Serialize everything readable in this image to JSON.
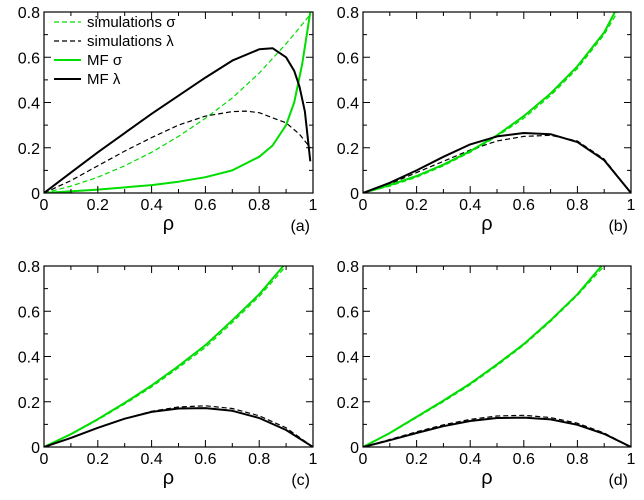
{
  "chart_data": [
    {
      "panel": "(a)",
      "type": "line",
      "xlabel": "ρ",
      "ylabel": "",
      "xlim": [
        0,
        1
      ],
      "ylim": [
        0,
        0.8
      ],
      "xticks": [
        "0",
        "0.2",
        "0.4",
        "0.6",
        "0.8",
        "1"
      ],
      "yticks": [
        "0",
        "0.2",
        "0.4",
        "0.6",
        "0.8"
      ],
      "grid": false,
      "legend": {
        "placement": "top-left",
        "entries": [
          {
            "label": "simulations σ",
            "color": "#00dd00",
            "dash": true
          },
          {
            "label": "simulations λ",
            "color": "#000000",
            "dash": true
          },
          {
            "label": "MF σ",
            "color": "#00dd00",
            "dash": false
          },
          {
            "label": "MF λ",
            "color": "#000000",
            "dash": false
          }
        ]
      },
      "series": [
        {
          "kind": "sim-sigma",
          "color": "#00dd00",
          "dash": true,
          "x": [
            0,
            0.1,
            0.2,
            0.3,
            0.4,
            0.5,
            0.6,
            0.7,
            0.8,
            0.9,
            0.95,
            0.99
          ],
          "y": [
            0,
            0.03,
            0.07,
            0.12,
            0.18,
            0.25,
            0.33,
            0.42,
            0.53,
            0.66,
            0.73,
            0.79
          ]
        },
        {
          "kind": "sim-lambda",
          "color": "#000000",
          "dash": true,
          "x": [
            0,
            0.1,
            0.2,
            0.3,
            0.4,
            0.5,
            0.6,
            0.7,
            0.75,
            0.8,
            0.9,
            0.95,
            0.99
          ],
          "y": [
            0,
            0.055,
            0.12,
            0.185,
            0.245,
            0.3,
            0.34,
            0.36,
            0.362,
            0.355,
            0.31,
            0.26,
            0.2
          ]
        },
        {
          "kind": "mf-sigma",
          "color": "#00dd00",
          "dash": false,
          "x": [
            0,
            0.2,
            0.4,
            0.5,
            0.6,
            0.7,
            0.8,
            0.85,
            0.9,
            0.93,
            0.96,
            0.99
          ],
          "y": [
            0,
            0.015,
            0.035,
            0.05,
            0.07,
            0.1,
            0.16,
            0.21,
            0.3,
            0.4,
            0.57,
            0.8
          ]
        },
        {
          "kind": "mf-lambda",
          "color": "#000000",
          "dash": false,
          "x": [
            0,
            0.1,
            0.2,
            0.3,
            0.4,
            0.5,
            0.6,
            0.7,
            0.8,
            0.85,
            0.9,
            0.93,
            0.95,
            0.97,
            0.99
          ],
          "y": [
            0,
            0.09,
            0.18,
            0.265,
            0.35,
            0.43,
            0.51,
            0.585,
            0.635,
            0.64,
            0.6,
            0.54,
            0.47,
            0.36,
            0.14
          ]
        }
      ]
    },
    {
      "panel": "(b)",
      "type": "line",
      "xlabel": "ρ",
      "ylabel": "",
      "xlim": [
        0,
        1
      ],
      "ylim": [
        0,
        0.8
      ],
      "xticks": [
        "0",
        "0.2",
        "0.4",
        "0.6",
        "0.8",
        "1"
      ],
      "yticks": [
        "0",
        "0.2",
        "0.4",
        "0.6",
        "0.8"
      ],
      "grid": false,
      "series": [
        {
          "kind": "sim-sigma",
          "color": "#00dd00",
          "dash": true,
          "x": [
            0,
            0.1,
            0.2,
            0.3,
            0.4,
            0.5,
            0.6,
            0.7,
            0.8,
            0.9,
            0.95
          ],
          "y": [
            0,
            0.03,
            0.07,
            0.12,
            0.18,
            0.25,
            0.33,
            0.43,
            0.55,
            0.7,
            0.8
          ]
        },
        {
          "kind": "sim-lambda",
          "color": "#000000",
          "dash": true,
          "x": [
            0,
            0.1,
            0.2,
            0.3,
            0.4,
            0.5,
            0.6,
            0.7,
            0.8,
            0.9,
            1
          ],
          "y": [
            0,
            0.04,
            0.09,
            0.14,
            0.19,
            0.23,
            0.25,
            0.255,
            0.23,
            0.15,
            0
          ]
        },
        {
          "kind": "mf-sigma",
          "color": "#00dd00",
          "dash": false,
          "x": [
            0,
            0.1,
            0.2,
            0.3,
            0.4,
            0.5,
            0.6,
            0.7,
            0.8,
            0.9,
            0.94
          ],
          "y": [
            0,
            0.035,
            0.075,
            0.125,
            0.185,
            0.255,
            0.34,
            0.44,
            0.56,
            0.71,
            0.8
          ]
        },
        {
          "kind": "mf-lambda",
          "color": "#000000",
          "dash": false,
          "x": [
            0,
            0.1,
            0.2,
            0.3,
            0.4,
            0.5,
            0.6,
            0.7,
            0.8,
            0.9,
            1
          ],
          "y": [
            0,
            0.045,
            0.1,
            0.16,
            0.215,
            0.25,
            0.265,
            0.26,
            0.225,
            0.145,
            0
          ]
        }
      ]
    },
    {
      "panel": "(c)",
      "type": "line",
      "xlabel": "ρ",
      "ylabel": "",
      "xlim": [
        0,
        1
      ],
      "ylim": [
        0,
        0.8
      ],
      "xticks": [
        "0",
        "0.2",
        "0.4",
        "0.6",
        "0.8",
        "1"
      ],
      "yticks": [
        "0",
        "0.2",
        "0.4",
        "0.6",
        "0.8"
      ],
      "grid": false,
      "series": [
        {
          "kind": "sim-sigma",
          "color": "#00dd00",
          "dash": true,
          "x": [
            0,
            0.1,
            0.2,
            0.3,
            0.4,
            0.5,
            0.6,
            0.7,
            0.8,
            0.9
          ],
          "y": [
            0,
            0.055,
            0.12,
            0.19,
            0.265,
            0.35,
            0.44,
            0.55,
            0.665,
            0.8
          ]
        },
        {
          "kind": "sim-lambda",
          "color": "#000000",
          "dash": true,
          "x": [
            0,
            0.1,
            0.2,
            0.3,
            0.4,
            0.5,
            0.6,
            0.7,
            0.8,
            0.9,
            1
          ],
          "y": [
            0,
            0.04,
            0.085,
            0.125,
            0.158,
            0.177,
            0.182,
            0.17,
            0.138,
            0.085,
            0
          ]
        },
        {
          "kind": "mf-sigma",
          "color": "#00dd00",
          "dash": false,
          "x": [
            0,
            0.1,
            0.2,
            0.3,
            0.4,
            0.5,
            0.6,
            0.7,
            0.8,
            0.89
          ],
          "y": [
            0,
            0.057,
            0.123,
            0.195,
            0.272,
            0.358,
            0.45,
            0.56,
            0.675,
            0.8
          ]
        },
        {
          "kind": "mf-lambda",
          "color": "#000000",
          "dash": false,
          "x": [
            0,
            0.1,
            0.2,
            0.3,
            0.4,
            0.5,
            0.6,
            0.7,
            0.8,
            0.9,
            1
          ],
          "y": [
            0,
            0.04,
            0.085,
            0.125,
            0.155,
            0.17,
            0.172,
            0.16,
            0.128,
            0.075,
            0
          ]
        }
      ]
    },
    {
      "panel": "(d)",
      "type": "line",
      "xlabel": "ρ",
      "ylabel": "",
      "xlim": [
        0,
        1
      ],
      "ylim": [
        0,
        0.8
      ],
      "xticks": [
        "0",
        "0.2",
        "0.4",
        "0.6",
        "0.8",
        "1"
      ],
      "yticks": [
        "0",
        "0.2",
        "0.4",
        "0.6",
        "0.8"
      ],
      "grid": false,
      "series": [
        {
          "kind": "sim-sigma",
          "color": "#00dd00",
          "dash": true,
          "x": [
            0,
            0.1,
            0.2,
            0.3,
            0.4,
            0.5,
            0.6,
            0.7,
            0.8,
            0.9
          ],
          "y": [
            0,
            0.06,
            0.13,
            0.2,
            0.275,
            0.36,
            0.45,
            0.555,
            0.67,
            0.8
          ]
        },
        {
          "kind": "sim-lambda",
          "color": "#000000",
          "dash": true,
          "x": [
            0,
            0.1,
            0.2,
            0.3,
            0.4,
            0.5,
            0.6,
            0.7,
            0.8,
            0.9,
            1
          ],
          "y": [
            0,
            0.033,
            0.067,
            0.098,
            0.122,
            0.137,
            0.14,
            0.13,
            0.105,
            0.062,
            0
          ]
        },
        {
          "kind": "mf-sigma",
          "color": "#00dd00",
          "dash": false,
          "x": [
            0,
            0.1,
            0.2,
            0.3,
            0.4,
            0.5,
            0.6,
            0.7,
            0.8,
            0.89
          ],
          "y": [
            0,
            0.062,
            0.133,
            0.205,
            0.28,
            0.365,
            0.455,
            0.56,
            0.675,
            0.8
          ]
        },
        {
          "kind": "mf-lambda",
          "color": "#000000",
          "dash": false,
          "x": [
            0,
            0.1,
            0.2,
            0.3,
            0.4,
            0.5,
            0.6,
            0.7,
            0.8,
            0.9,
            1
          ],
          "y": [
            0,
            0.03,
            0.062,
            0.092,
            0.115,
            0.128,
            0.13,
            0.122,
            0.098,
            0.058,
            0
          ]
        }
      ]
    }
  ]
}
